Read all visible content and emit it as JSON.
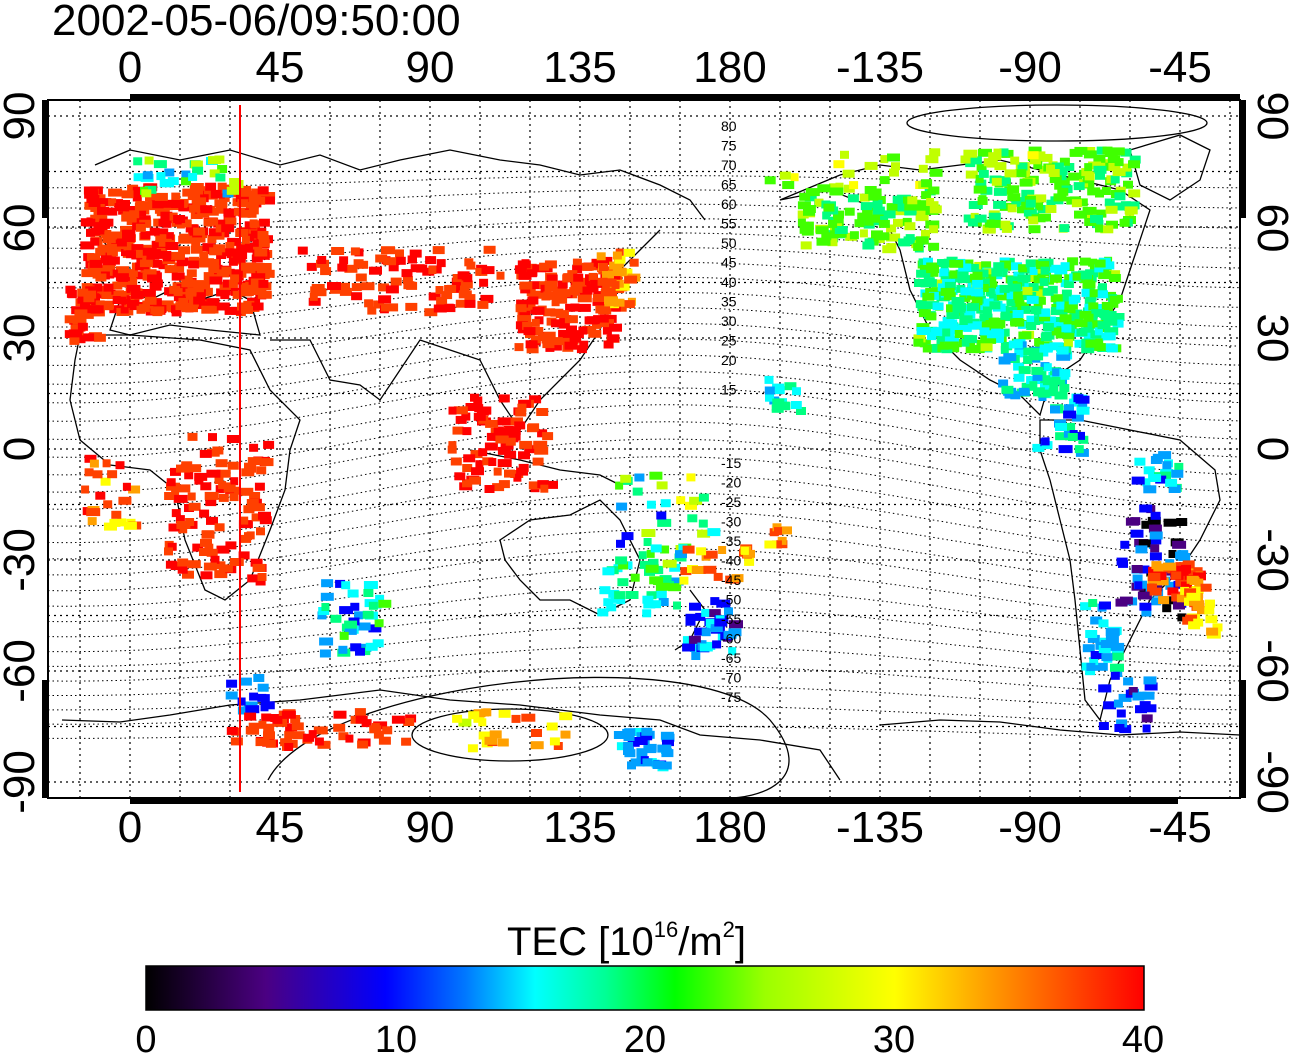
{
  "title": "2002-05-06/09:50:00",
  "axes": {
    "top_ticks": [
      "0",
      "45",
      "90",
      "135",
      "180",
      "-135",
      "-90",
      "-45"
    ],
    "bottom_ticks": [
      "0",
      "45",
      "90",
      "135",
      "180",
      "-135",
      "-90",
      "-45"
    ],
    "left_ticks": [
      "90",
      "60",
      "30",
      "0",
      "-30",
      "-60",
      "-90"
    ],
    "right_ticks": [
      "90",
      "60",
      "30",
      "0",
      "-30",
      "-60",
      "-90"
    ]
  },
  "colorbar": {
    "label_prefix": "TEC  [10",
    "label_exp": "16",
    "label_mid": "/m",
    "label_exp2": "2",
    "label_suffix": "]",
    "ticks": [
      "0",
      "10",
      "20",
      "30",
      "40"
    ],
    "range": [
      0,
      40
    ],
    "colors": [
      "#000000",
      "#4b0082",
      "#0000ff",
      "#00a0ff",
      "#00ffff",
      "#00ff80",
      "#40ff00",
      "#c0ff00",
      "#ffff00",
      "#ffa000",
      "#ff4000",
      "#ff0000"
    ]
  },
  "contour_labels": {
    "north": [
      "80",
      "75",
      "70",
      "65",
      "60",
      "55",
      "50",
      "45",
      "40",
      "35",
      "30",
      "25",
      "20",
      "15"
    ],
    "south": [
      "-15",
      "-20",
      "-25",
      "-30",
      "-35",
      "-40",
      "-45",
      "-50",
      "-55",
      "-60",
      "-65",
      "-70",
      "-75"
    ]
  },
  "terminator_longitude": 33
}
